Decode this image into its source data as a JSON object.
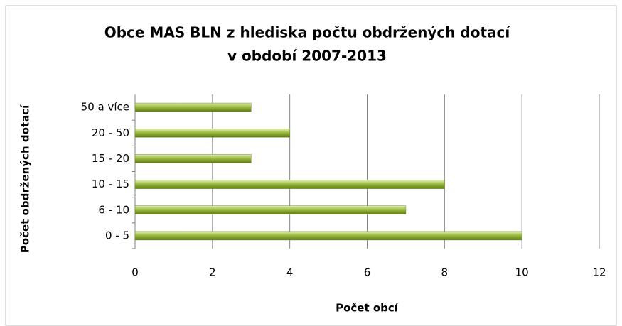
{
  "chart_data": {
    "type": "bar",
    "orientation": "horizontal",
    "title": [
      "Obce MAS BLN z hlediska počtu obdržených dotací",
      "v období 2007-2013"
    ],
    "x_label": "Počet obcí",
    "y_label": "Počet obdržených dotací",
    "categories": [
      "0 - 5",
      "6 - 10",
      "10 - 15",
      "15 - 20",
      "20 - 50",
      "50 a více"
    ],
    "values": [
      10,
      7,
      8,
      3,
      4,
      3
    ],
    "color": "#9bbb3c",
    "xlim": [
      0,
      12
    ],
    "xticks": [
      0,
      2,
      4,
      6,
      8,
      10,
      12
    ],
    "grid": true
  }
}
